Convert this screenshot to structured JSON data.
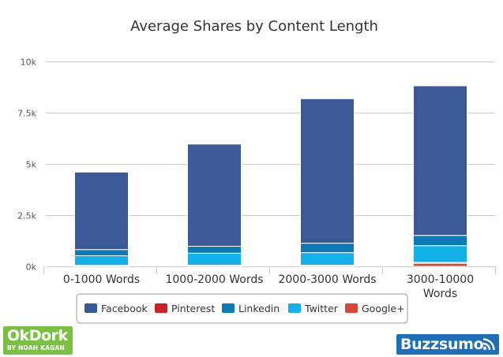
{
  "chart_data": {
    "type": "bar",
    "stacked": true,
    "title": "Average Shares by Content Length",
    "categories": [
      "0-1000 Words",
      "1000-2000 Words",
      "2000-3000 Words",
      "3000-10000 Words"
    ],
    "series": [
      {
        "name": "Google+",
        "color": "#d9453a",
        "values": [
          30,
          40,
          40,
          150
        ]
      },
      {
        "name": "Pinterest",
        "color": "#cb2027",
        "values": [
          20,
          20,
          20,
          40
        ]
      },
      {
        "name": "Twitter",
        "color": "#12b1ec",
        "values": [
          470,
          580,
          610,
          820
        ]
      },
      {
        "name": "Linkedin",
        "color": "#0b7ab5",
        "values": [
          300,
          340,
          460,
          500
        ]
      },
      {
        "name": "Facebook",
        "color": "#3b5897",
        "values": [
          3780,
          4990,
          7050,
          7300
        ]
      }
    ],
    "legend_order": [
      "Facebook",
      "Pinterest",
      "Linkedin",
      "Twitter",
      "Google+"
    ],
    "yticks": [
      {
        "value": 0,
        "label": "0k"
      },
      {
        "value": 2500,
        "label": "2.5k"
      },
      {
        "value": 5000,
        "label": "5k"
      },
      {
        "value": 7500,
        "label": "7.5k"
      },
      {
        "value": 10000,
        "label": "10k"
      }
    ],
    "ylim": [
      0,
      10000
    ],
    "grid": true,
    "legend_position": "bottom"
  },
  "logos": {
    "okdork": {
      "main": "OkDork",
      "sub": "BY NOAH KAGAN"
    },
    "buzzsumo": {
      "main": "Buzzsumo"
    }
  }
}
